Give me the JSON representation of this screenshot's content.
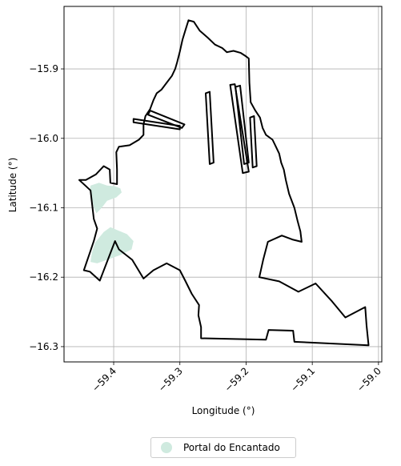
{
  "chart_data": {
    "type": "map",
    "xlabel": "Longitude (°)",
    "ylabel": "Latitude (°)",
    "xlim": [
      -59.475,
      -58.995
    ],
    "ylim": [
      -16.322,
      -15.81
    ],
    "grid": true,
    "x_ticks": [
      {
        "value": -59.4,
        "label": "−59.4"
      },
      {
        "value": -59.3,
        "label": "−59.3"
      },
      {
        "value": -59.2,
        "label": "−59.2"
      },
      {
        "value": -59.1,
        "label": "−59.1"
      },
      {
        "value": -59.0,
        "label": "−59.0"
      }
    ],
    "y_ticks": [
      {
        "value": -15.9,
        "label": "−15.9"
      },
      {
        "value": -16.0,
        "label": "−16.0"
      },
      {
        "value": -16.1,
        "label": "−16.1"
      },
      {
        "value": -16.2,
        "label": "−16.2"
      },
      {
        "value": -16.3,
        "label": "−16.3"
      }
    ],
    "boundary_color": "#000000",
    "area_color": "#cfeadf",
    "boundary": [
      [
        -59.287,
        -15.83
      ],
      [
        -59.279,
        -15.832
      ],
      [
        -59.27,
        -15.845
      ],
      [
        -59.258,
        -15.855
      ],
      [
        -59.247,
        -15.865
      ],
      [
        -59.236,
        -15.87
      ],
      [
        -59.229,
        -15.876
      ],
      [
        -59.219,
        -15.874
      ],
      [
        -59.208,
        -15.877
      ],
      [
        -59.2,
        -15.882
      ],
      [
        -59.196,
        -15.885
      ],
      [
        -59.195,
        -15.92
      ],
      [
        -59.193,
        -15.948
      ],
      [
        -59.186,
        -15.96
      ],
      [
        -59.179,
        -15.97
      ],
      [
        -59.175,
        -15.985
      ],
      [
        -59.17,
        -15.995
      ],
      [
        -59.16,
        -16.002
      ],
      [
        -59.155,
        -16.012
      ],
      [
        -59.15,
        -16.022
      ],
      [
        -59.147,
        -16.035
      ],
      [
        -59.143,
        -16.045
      ],
      [
        -59.14,
        -16.06
      ],
      [
        -59.135,
        -16.08
      ],
      [
        -59.127,
        -16.1
      ],
      [
        -59.122,
        -16.12
      ],
      [
        -59.118,
        -16.134
      ],
      [
        -59.116,
        -16.149
      ],
      [
        -59.129,
        -16.146
      ],
      [
        -59.146,
        -16.14
      ],
      [
        -59.167,
        -16.149
      ],
      [
        -59.174,
        -16.174
      ],
      [
        -59.18,
        -16.2
      ],
      [
        -59.15,
        -16.206
      ],
      [
        -59.121,
        -16.221
      ],
      [
        -59.095,
        -16.209
      ],
      [
        -59.07,
        -16.235
      ],
      [
        -59.05,
        -16.258
      ],
      [
        -59.02,
        -16.243
      ],
      [
        -59.018,
        -16.27
      ],
      [
        -59.015,
        -16.298
      ],
      [
        -59.127,
        -16.293
      ],
      [
        -59.129,
        -16.277
      ],
      [
        -59.166,
        -16.276
      ],
      [
        -59.17,
        -16.29
      ],
      [
        -59.268,
        -16.288
      ],
      [
        -59.268,
        -16.272
      ],
      [
        -59.272,
        -16.255
      ],
      [
        -59.271,
        -16.24
      ],
      [
        -59.282,
        -16.224
      ],
      [
        -59.292,
        -16.205
      ],
      [
        -59.3,
        -16.19
      ],
      [
        -59.32,
        -16.18
      ],
      [
        -59.34,
        -16.19
      ],
      [
        -59.355,
        -16.202
      ],
      [
        -59.372,
        -16.175
      ],
      [
        -59.392,
        -16.16
      ],
      [
        -59.398,
        -16.148
      ],
      [
        -59.421,
        -16.205
      ],
      [
        -59.436,
        -16.192
      ],
      [
        -59.445,
        -16.19
      ],
      [
        -59.44,
        -16.176
      ],
      [
        -59.435,
        -16.162
      ],
      [
        -59.43,
        -16.148
      ],
      [
        -59.425,
        -16.13
      ],
      [
        -59.43,
        -16.116
      ],
      [
        -59.432,
        -16.1
      ],
      [
        -59.435,
        -16.075
      ],
      [
        -59.443,
        -16.068
      ],
      [
        -59.452,
        -16.06
      ],
      [
        -59.442,
        -16.06
      ],
      [
        -59.427,
        -16.052
      ],
      [
        -59.415,
        -16.04
      ],
      [
        -59.406,
        -16.045
      ],
      [
        -59.405,
        -16.064
      ],
      [
        -59.395,
        -16.066
      ],
      [
        -59.395,
        -16.045
      ],
      [
        -59.396,
        -16.02
      ],
      [
        -59.392,
        -16.012
      ],
      [
        -59.376,
        -16.01
      ],
      [
        -59.362,
        -16.002
      ],
      [
        -59.355,
        -15.995
      ],
      [
        -59.355,
        -15.98
      ],
      [
        -59.352,
        -15.968
      ],
      [
        -59.345,
        -15.958
      ],
      [
        -59.34,
        -15.945
      ],
      [
        -59.335,
        -15.935
      ],
      [
        -59.328,
        -15.93
      ],
      [
        -59.32,
        -15.92
      ],
      [
        -59.312,
        -15.91
      ],
      [
        -59.307,
        -15.9
      ],
      [
        -59.304,
        -15.89
      ],
      [
        -59.3,
        -15.875
      ],
      [
        -59.296,
        -15.858
      ],
      [
        -59.292,
        -15.845
      ],
      [
        -59.287,
        -15.83
      ]
    ],
    "strips": [
      [
        [
          -59.261,
          -15.935
        ],
        [
          -59.255,
          -15.933
        ],
        [
          -59.249,
          -16.035
        ],
        [
          -59.255,
          -16.037
        ],
        [
          -59.261,
          -15.935
        ]
      ],
      [
        [
          -59.224,
          -15.923
        ],
        [
          -59.217,
          -15.922
        ],
        [
          -59.196,
          -16.048
        ],
        [
          -59.205,
          -16.05
        ],
        [
          -59.224,
          -15.923
        ]
      ],
      [
        [
          -59.216,
          -15.926
        ],
        [
          -59.209,
          -15.924
        ],
        [
          -59.196,
          -16.035
        ],
        [
          -59.203,
          -16.037
        ],
        [
          -59.216,
          -15.926
        ]
      ],
      [
        [
          -59.194,
          -15.97
        ],
        [
          -59.188,
          -15.968
        ],
        [
          -59.184,
          -16.04
        ],
        [
          -59.19,
          -16.042
        ],
        [
          -59.194,
          -15.97
        ]
      ],
      [
        [
          -59.37,
          -15.972
        ],
        [
          -59.3,
          -15.982
        ],
        [
          -59.3,
          -15.987
        ],
        [
          -59.37,
          -15.977
        ],
        [
          -59.37,
          -15.972
        ]
      ],
      [
        [
          -59.345,
          -15.96
        ],
        [
          -59.293,
          -15.98
        ],
        [
          -59.297,
          -15.985
        ],
        [
          -59.348,
          -15.966
        ],
        [
          -59.345,
          -15.96
        ]
      ]
    ],
    "areas": [
      {
        "name": "Portal do Encantado",
        "polygons": [
          [
            [
              -59.435,
              -16.068
            ],
            [
              -59.422,
              -16.064
            ],
            [
              -59.41,
              -16.068
            ],
            [
              -59.398,
              -16.069
            ],
            [
              -59.39,
              -16.072
            ],
            [
              -59.388,
              -16.078
            ],
            [
              -59.396,
              -16.085
            ],
            [
              -59.41,
              -16.09
            ],
            [
              -59.418,
              -16.1
            ],
            [
              -59.426,
              -16.108
            ],
            [
              -59.43,
              -16.1
            ],
            [
              -59.433,
              -16.085
            ],
            [
              -59.436,
              -16.075
            ],
            [
              -59.435,
              -16.068
            ]
          ],
          [
            [
              -59.405,
              -16.128
            ],
            [
              -59.395,
              -16.132
            ],
            [
              -59.38,
              -16.138
            ],
            [
              -59.37,
              -16.148
            ],
            [
              -59.373,
              -16.16
            ],
            [
              -59.39,
              -16.168
            ],
            [
              -59.41,
              -16.175
            ],
            [
              -59.425,
              -16.18
            ],
            [
              -59.435,
              -16.178
            ],
            [
              -59.433,
              -16.165
            ],
            [
              -59.428,
              -16.15
            ],
            [
              -59.415,
              -16.135
            ],
            [
              -59.405,
              -16.128
            ]
          ]
        ]
      }
    ]
  }
}
